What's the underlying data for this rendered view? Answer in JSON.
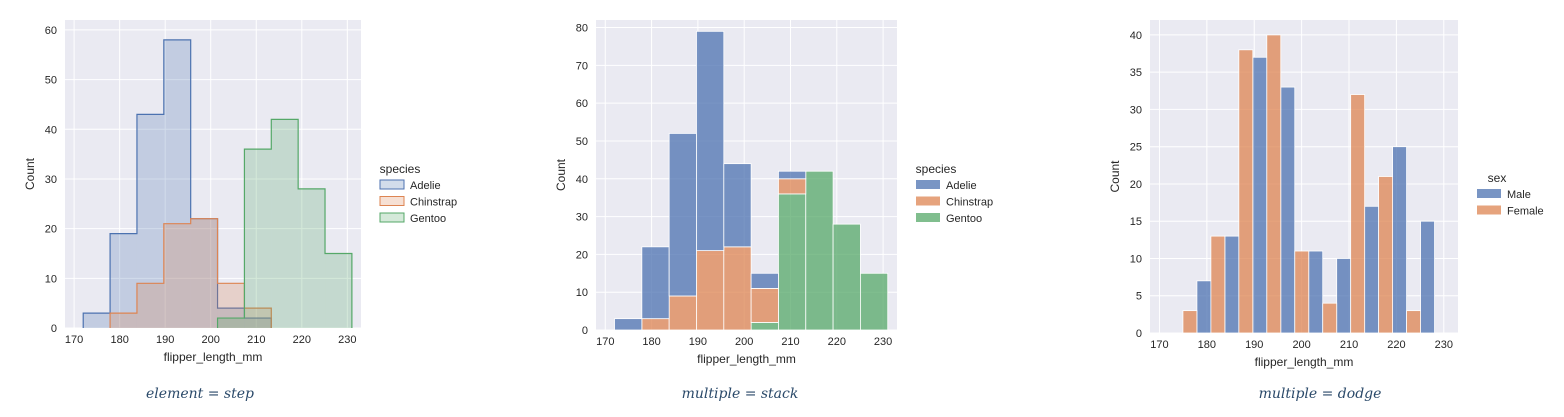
{
  "chart_data": [
    {
      "type": "bar",
      "variant": "step-histogram",
      "caption": "element = step",
      "xlabel": "flipper_length_mm",
      "ylabel": "Count",
      "xlim": [
        168,
        233
      ],
      "ylim": [
        0,
        62
      ],
      "xticks": [
        170,
        180,
        190,
        200,
        210,
        220,
        230
      ],
      "yticks": [
        0,
        10,
        20,
        30,
        40,
        50,
        60
      ],
      "bin_edges": [
        172,
        177.9,
        183.8,
        189.7,
        195.6,
        201.5,
        207.4,
        213.3,
        219.2,
        225.1,
        231
      ],
      "legend": {
        "title": "species",
        "position": "right"
      },
      "series": [
        {
          "name": "Adelie",
          "color": "#4c72b0",
          "bins": [
            0,
            1,
            2,
            3,
            4,
            5,
            6
          ],
          "values": [
            3,
            19,
            43,
            58,
            22,
            4,
            2
          ]
        },
        {
          "name": "Chinstrap",
          "color": "#dd8452",
          "bins": [
            1,
            2,
            3,
            4,
            5,
            6
          ],
          "values": [
            3,
            9,
            21,
            22,
            9,
            4
          ]
        },
        {
          "name": "Gentoo",
          "color": "#55a868",
          "bins": [
            5,
            6,
            7,
            8,
            9
          ],
          "values": [
            2,
            36,
            42,
            28,
            15
          ]
        }
      ],
      "grid": true
    },
    {
      "type": "bar",
      "variant": "stacked-histogram",
      "caption": "multiple = stack",
      "xlabel": "flipper_length_mm",
      "ylabel": "Count",
      "xlim": [
        168,
        233
      ],
      "ylim": [
        0,
        82
      ],
      "xticks": [
        170,
        180,
        190,
        200,
        210,
        220,
        230
      ],
      "yticks": [
        0,
        10,
        20,
        30,
        40,
        50,
        60,
        70,
        80
      ],
      "bin_edges": [
        172,
        177.9,
        183.8,
        189.7,
        195.6,
        201.5,
        207.4,
        213.3,
        219.2,
        225.1,
        231
      ],
      "legend": {
        "title": "species",
        "position": "right"
      },
      "series": [
        {
          "name": "Gentoo",
          "color": "#55a868",
          "values": [
            0,
            0,
            0,
            0,
            0,
            2,
            36,
            42,
            28,
            15
          ]
        },
        {
          "name": "Chinstrap",
          "color": "#dd8452",
          "values": [
            0,
            3,
            9,
            21,
            22,
            9,
            4,
            0,
            0,
            0
          ]
        },
        {
          "name": "Adelie",
          "color": "#4c72b0",
          "values": [
            3,
            19,
            43,
            58,
            22,
            4,
            2,
            0,
            0,
            0
          ]
        }
      ],
      "legend_order": [
        "Adelie",
        "Chinstrap",
        "Gentoo"
      ],
      "grid": true
    },
    {
      "type": "bar",
      "variant": "dodged-histogram",
      "caption": "multiple = dodge",
      "xlabel": "flipper_length_mm",
      "ylabel": "Count",
      "xlim": [
        168,
        233
      ],
      "ylim": [
        0,
        42
      ],
      "xticks": [
        170,
        180,
        190,
        200,
        210,
        220,
        230
      ],
      "yticks": [
        0,
        5,
        10,
        15,
        20,
        25,
        30,
        35,
        40
      ],
      "bin_edges": [
        172,
        177.9,
        183.8,
        189.7,
        195.6,
        201.5,
        207.4,
        213.3,
        219.2,
        225.1,
        231
      ],
      "legend": {
        "title": "sex",
        "position": "right"
      },
      "series": [
        {
          "name": "Male",
          "color": "#4c72b0",
          "values": [
            0,
            7,
            13,
            37,
            33,
            11,
            10,
            17,
            25,
            15
          ]
        },
        {
          "name": "Female",
          "color": "#dd8452",
          "values": [
            3,
            13,
            38,
            40,
            11,
            4,
            32,
            21,
            3,
            0
          ]
        }
      ],
      "grid": true
    }
  ]
}
